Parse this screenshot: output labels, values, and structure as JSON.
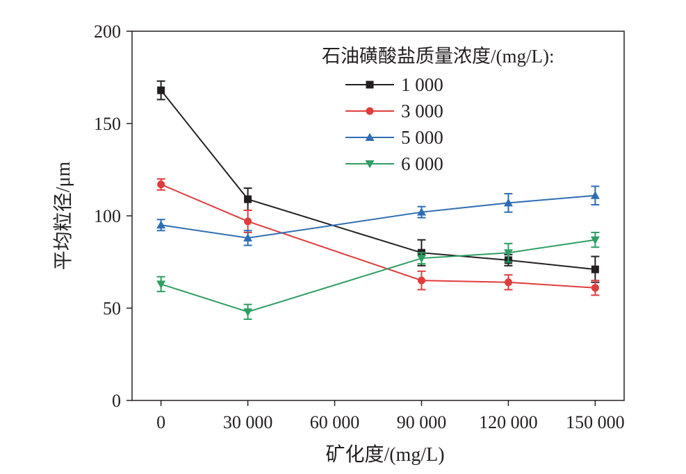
{
  "chart_data": {
    "type": "line",
    "title": "",
    "xlabel": "矿化度/(mg/L)",
    "ylabel": "平均粒径/μm",
    "x": [
      0,
      30000,
      90000,
      120000,
      150000
    ],
    "xticks": [
      0,
      30000,
      60000,
      90000,
      120000,
      150000
    ],
    "xtick_labels": [
      "0",
      "30 000",
      "60 000",
      "90 000",
      "120 000",
      "150 000"
    ],
    "xlim": [
      -10000,
      160000
    ],
    "yticks": [
      0,
      50,
      100,
      150,
      200
    ],
    "ytick_labels": [
      "0",
      "50",
      "100",
      "150",
      "200"
    ],
    "ylim": [
      0,
      200
    ],
    "grid": false,
    "legend": {
      "title": "石油磺酸盐质量浓度/(mg/L):",
      "position": "top-right"
    },
    "series": [
      {
        "name": "1 000",
        "color": "#231f20",
        "marker": "square",
        "values": [
          168,
          109,
          80,
          76,
          71
        ],
        "errors": [
          5,
          6,
          7,
          3,
          7
        ]
      },
      {
        "name": "3 000",
        "color": "#e03c3c",
        "marker": "circle",
        "values": [
          117,
          97,
          65,
          64,
          61
        ],
        "errors": [
          3,
          6,
          5,
          4,
          4
        ]
      },
      {
        "name": "5 000",
        "color": "#2e6db4",
        "marker": "triangle-up",
        "values": [
          95,
          88,
          102,
          107,
          111
        ],
        "errors": [
          3,
          4,
          3,
          5,
          5
        ]
      },
      {
        "name": "6 000",
        "color": "#2e9e62",
        "marker": "triangle-down",
        "values": [
          63,
          48,
          77,
          80,
          87
        ],
        "errors": [
          4,
          4,
          3,
          5,
          4
        ]
      }
    ]
  }
}
